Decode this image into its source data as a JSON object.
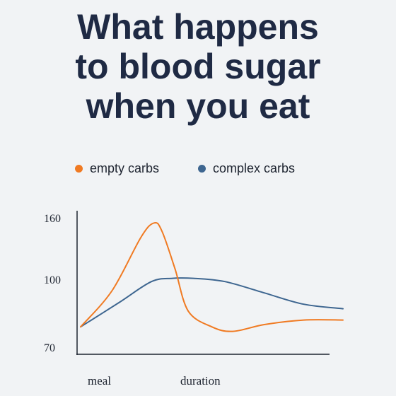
{
  "title_lines": [
    "What happens",
    "to blood sugar",
    "when you eat"
  ],
  "legend": [
    {
      "label": "empty carbs",
      "color": "#f07a22"
    },
    {
      "label": "complex carbs",
      "color": "#3e6690"
    }
  ],
  "chart_data": {
    "type": "line",
    "title": "What happens to blood sugar when you eat",
    "xlabel": "duration",
    "x_tick_labels": [
      "meal",
      "duration"
    ],
    "ylabel": "",
    "y_ticks": [
      70,
      100,
      160
    ],
    "ylim": [
      70,
      160
    ],
    "xlim": [
      0,
      10
    ],
    "grid": false,
    "legend_position": "top",
    "series": [
      {
        "name": "empty carbs",
        "color": "#f07a22",
        "points": [
          [
            0,
            79
          ],
          [
            1.2,
            95
          ],
          [
            2.3,
            141
          ],
          [
            2.8,
            155
          ],
          [
            3.1,
            147
          ],
          [
            3.6,
            110
          ],
          [
            4.1,
            86
          ],
          [
            5,
            79
          ],
          [
            5.8,
            77
          ],
          [
            7,
            80
          ],
          [
            8.5,
            82
          ],
          [
            10,
            82
          ]
        ]
      },
      {
        "name": "complex carbs",
        "color": "#3e6690",
        "points": [
          [
            0,
            79
          ],
          [
            1.5,
            90
          ],
          [
            2.7,
            99
          ],
          [
            3.5,
            101
          ],
          [
            4.3,
            101
          ],
          [
            5.5,
            99
          ],
          [
            7,
            94
          ],
          [
            8.5,
            89
          ],
          [
            10,
            87
          ]
        ]
      }
    ]
  }
}
